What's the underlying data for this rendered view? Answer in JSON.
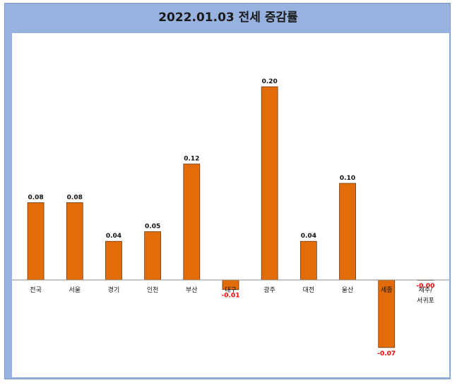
{
  "chart_data": {
    "type": "bar",
    "title": "2022.01.03 전세 증감률",
    "categories": [
      "전국",
      "서울",
      "경기",
      "인천",
      "부산",
      "대구",
      "광주",
      "대전",
      "울산",
      "세종",
      "제주/\n서귀포"
    ],
    "values": [
      0.08,
      0.08,
      0.04,
      0.05,
      0.12,
      -0.01,
      0.2,
      0.04,
      0.1,
      -0.07,
      -0.0
    ],
    "value_labels": [
      "0.08",
      "0.08",
      "0.04",
      "0.05",
      "0.12",
      "-0.01",
      "0.20",
      "0.04",
      "0.10",
      "-0.07",
      "-0.00"
    ],
    "ylim": [
      -0.07,
      0.2
    ],
    "grid": false,
    "colors": {
      "bar": "#e36c0a",
      "negative_label": "#ff0000",
      "frame": "#97b2df"
    }
  }
}
